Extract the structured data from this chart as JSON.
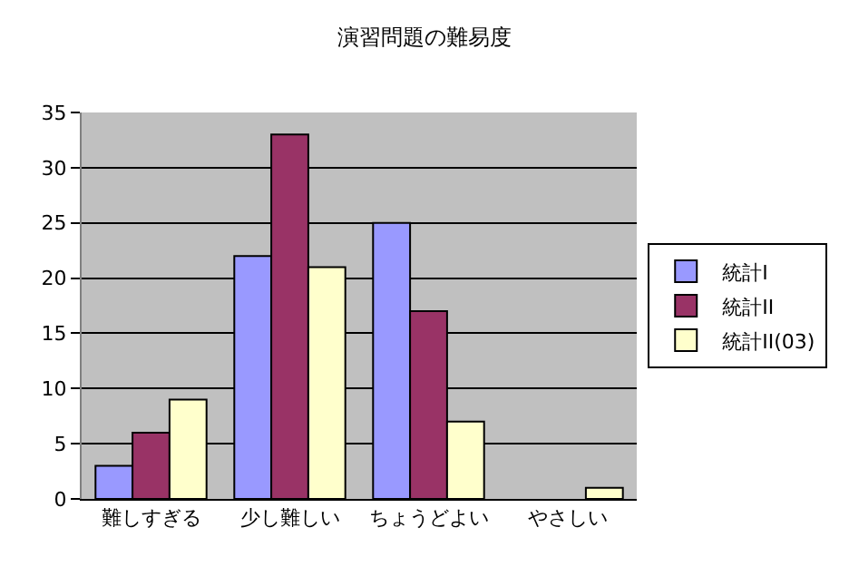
{
  "chart_data": {
    "type": "bar",
    "title": "演習問題の難易度",
    "categories": [
      "難しすぎる",
      "少し難しい",
      "ちょうどよい",
      "やさしい"
    ],
    "series": [
      {
        "name": "統計I",
        "color": "#9999ff",
        "values": [
          3,
          22,
          25,
          0
        ]
      },
      {
        "name": "統計II",
        "color": "#993366",
        "values": [
          6,
          33,
          17,
          0
        ]
      },
      {
        "name": "統計II(03)",
        "color": "#ffffcc",
        "values": [
          9,
          21,
          7,
          1
        ]
      }
    ],
    "ylim": [
      0,
      35
    ],
    "yticks": [
      0,
      5,
      10,
      15,
      20,
      25,
      30,
      35
    ],
    "grid": "y",
    "legend": "right"
  }
}
